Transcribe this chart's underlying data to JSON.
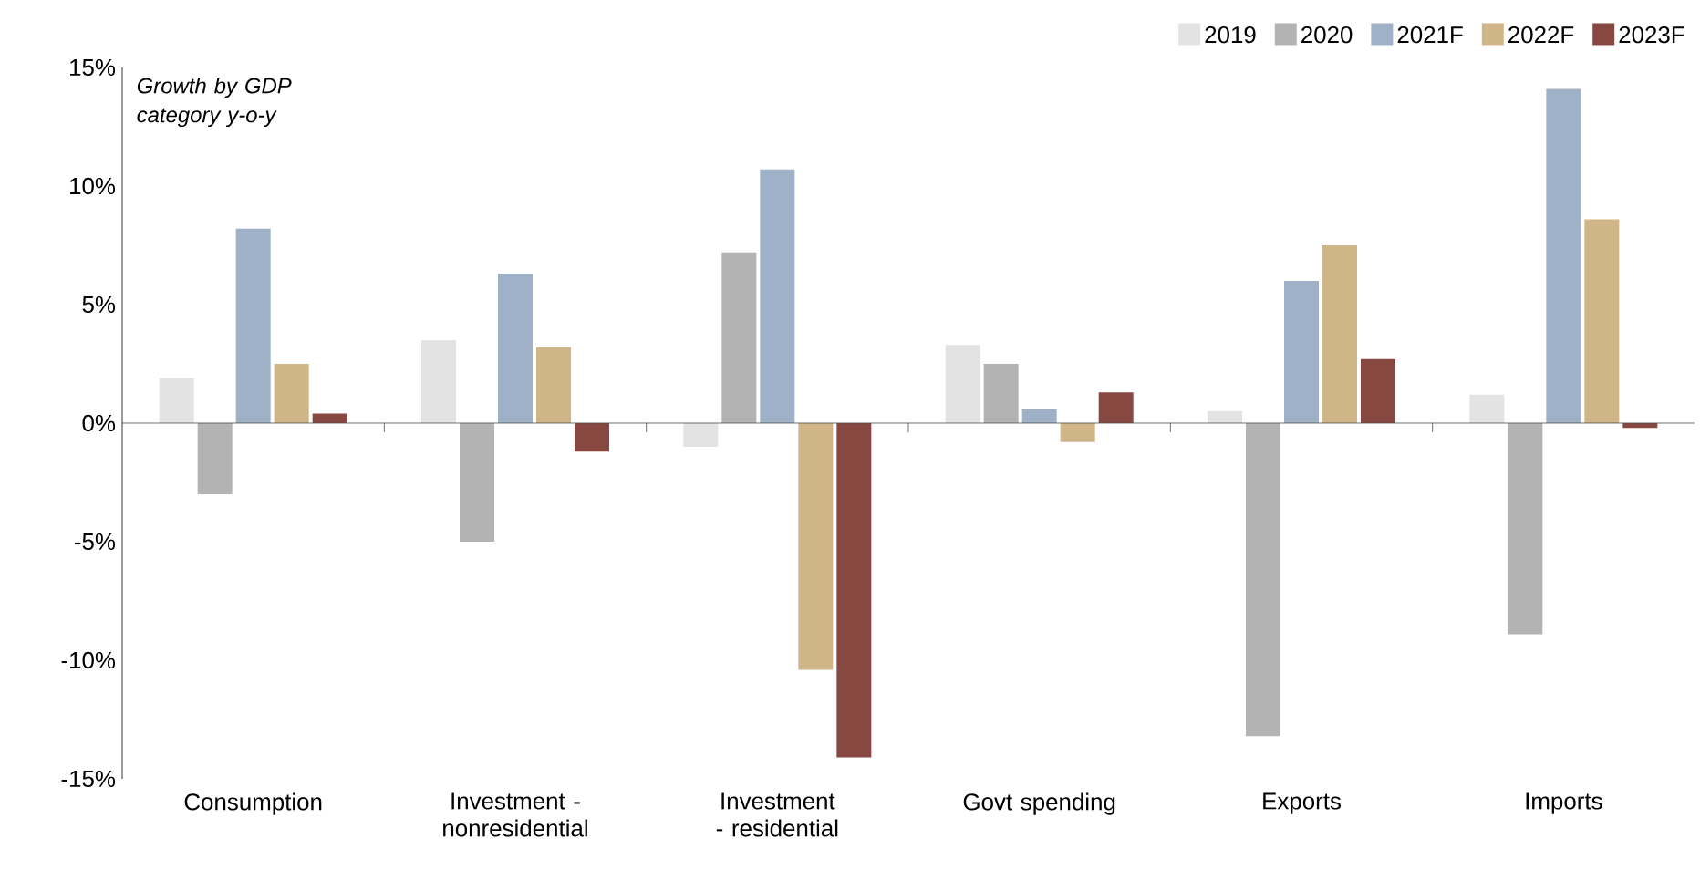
{
  "chart_data": {
    "type": "bar",
    "annotations": [
      "Growth by GDP category y-o-y"
    ],
    "categories": [
      "Consumption",
      "Investment - nonresidential",
      "Investment - residential",
      "Govt spending",
      "Exports",
      "Imports"
    ],
    "series": [
      {
        "name": "2019",
        "color": "#e3e3e3",
        "values": [
          1.9,
          3.5,
          -1.0,
          3.3,
          0.5,
          1.2
        ]
      },
      {
        "name": "2020",
        "color": "#b3b3b3",
        "values": [
          -3.0,
          -5.0,
          7.2,
          2.5,
          -13.2,
          -8.9
        ]
      },
      {
        "name": "2021F",
        "color": "#9fb1c6",
        "values": [
          8.2,
          6.3,
          10.7,
          0.6,
          6.0,
          14.1
        ]
      },
      {
        "name": "2022F",
        "color": "#cfb587",
        "values": [
          2.5,
          3.2,
          -10.4,
          -0.8,
          7.5,
          8.6
        ]
      },
      {
        "name": "2023F",
        "color": "#864840",
        "values": [
          0.4,
          -1.2,
          -14.1,
          1.3,
          2.7,
          -0.2
        ]
      }
    ],
    "ylim": [
      -15,
      15
    ],
    "yticks": [
      {
        "value": -15,
        "label": "-15%"
      },
      {
        "value": -10,
        "label": "-10%"
      },
      {
        "value": -5,
        "label": "-5%"
      },
      {
        "value": 0,
        "label": "0%"
      },
      {
        "value": 5,
        "label": "5%"
      },
      {
        "value": 10,
        "label": "10%"
      },
      {
        "value": 15,
        "label": "15%"
      }
    ],
    "legend": "top right"
  }
}
